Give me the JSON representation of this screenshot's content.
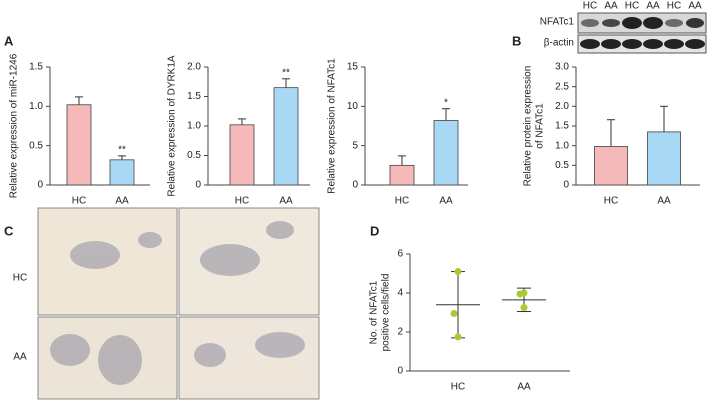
{
  "panel_labels": [
    "A",
    "B",
    "C",
    "D"
  ],
  "blot": {
    "lanes": [
      "HC",
      "AA",
      "HC",
      "AA",
      "HC",
      "AA"
    ],
    "rows": [
      "NFATc1",
      "β-actin"
    ]
  },
  "images": {
    "rows": [
      "HC",
      "AA"
    ]
  },
  "chart_data": [
    {
      "type": "bar",
      "ylabel": [
        "Relative expression of miR-1246"
      ],
      "categories": [
        "HC",
        "AA"
      ],
      "values": [
        1.02,
        0.32
      ],
      "errors": [
        0.1,
        0.05
      ],
      "colors": [
        "#f6b9b9",
        "#a9d8f5"
      ],
      "ylim": [
        0,
        1.5
      ],
      "yticks": [
        0,
        0.5,
        {
          "value": 1,
          "label": "1.0"
        },
        1.5
      ],
      "annotations": [
        {
          "category": "AA",
          "text": "**"
        }
      ]
    },
    {
      "type": "bar",
      "ylabel": [
        "Relative expression of DYRK1A"
      ],
      "categories": [
        "HC",
        "AA"
      ],
      "values": [
        1.02,
        1.65
      ],
      "errors": [
        0.1,
        0.15
      ],
      "colors": [
        "#f6b9b9",
        "#a9d8f5"
      ],
      "ylim": [
        0,
        2
      ],
      "yticks": [
        0,
        0.5,
        {
          "value": 1,
          "label": "1.0"
        },
        1.5,
        {
          "value": 2,
          "label": "2.0"
        }
      ],
      "annotations": [
        {
          "category": "AA",
          "text": "**"
        }
      ]
    },
    {
      "type": "bar",
      "ylabel": [
        "Relative expression of NFATc1"
      ],
      "categories": [
        "HC",
        "AA"
      ],
      "values": [
        2.5,
        8.2
      ],
      "errors": [
        1.2,
        1.5
      ],
      "colors": [
        "#f6b9b9",
        "#a9d8f5"
      ],
      "ylim": [
        0,
        15
      ],
      "yticks": [
        0,
        5,
        10,
        15
      ],
      "annotations": [
        {
          "category": "AA",
          "text": "*"
        }
      ]
    },
    {
      "type": "bar",
      "ylabel": [
        "Relative protein expression",
        "of NFATc1"
      ],
      "categories": [
        "HC",
        "AA"
      ],
      "values": [
        0.98,
        1.35
      ],
      "errors": [
        0.68,
        0.65
      ],
      "colors": [
        "#f6b9b9",
        "#a9d8f5"
      ],
      "ylim": [
        0,
        3
      ],
      "yticks": [
        0,
        0.5,
        {
          "value": 1,
          "label": "1.0"
        },
        1.5,
        {
          "value": 2,
          "label": "2.0"
        },
        2.5,
        {
          "value": 3,
          "label": "3.0"
        }
      ]
    },
    {
      "type": "dot",
      "ylabel": [
        "No. of NFATc1",
        "positive cells/field"
      ],
      "categories": [
        "HC",
        "AA"
      ],
      "points": [
        [
          5.1,
          2.95,
          1.75
        ],
        [
          4.0,
          3.95,
          3.25
        ]
      ],
      "means": [
        3.4,
        3.65
      ],
      "sd": [
        1.7,
        0.6
      ],
      "color": "#a9c935",
      "ylim": [
        0,
        6
      ],
      "yticks": [
        0,
        2,
        4,
        6
      ]
    }
  ]
}
